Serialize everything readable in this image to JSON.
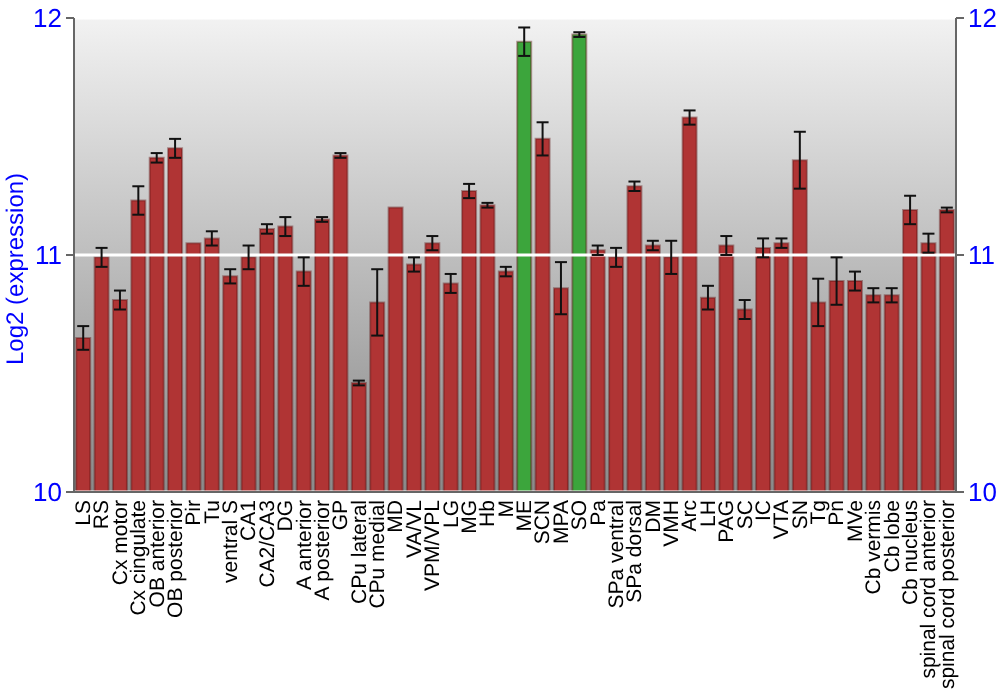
{
  "chart_data": {
    "type": "bar",
    "ylabel": "Log2 (expression)",
    "categories": [
      "LS",
      "RS",
      "Cx motor",
      "Cx cingulate",
      "OB anterior",
      "OB posterior",
      "Pir",
      "Tu",
      "ventral S",
      "CA1",
      "CA2/CA3",
      "DG",
      "A anterior",
      "A posterior",
      "GP",
      "CPu lateral",
      "CPu medial",
      "MD",
      "VA/VL",
      "VPM/VPL",
      "LG",
      "MG",
      "Hb",
      "M",
      "ME",
      "SCN",
      "MPA",
      "SO",
      "Pa",
      "SPa ventral",
      "SPa dorsal",
      "DM",
      "VMH",
      "Arc",
      "LH",
      "PAG",
      "SC",
      "IC",
      "VTA",
      "SN",
      "Tg",
      "Pn",
      "MVe",
      "Cb vermis",
      "Cb lobe",
      "Cb nucleus",
      "spinal cord anterior",
      "spinal cord posterior"
    ],
    "values": [
      10.65,
      10.99,
      10.81,
      11.23,
      11.41,
      11.45,
      11.05,
      11.07,
      10.91,
      10.99,
      11.11,
      11.12,
      10.93,
      11.15,
      11.42,
      10.46,
      10.8,
      11.2,
      10.96,
      11.05,
      10.88,
      11.27,
      11.21,
      10.93,
      11.9,
      11.49,
      10.86,
      11.93,
      11.02,
      10.99,
      11.29,
      11.04,
      10.99,
      11.58,
      10.82,
      11.04,
      10.77,
      11.03,
      11.05,
      11.4,
      10.8,
      10.89,
      10.89,
      10.83,
      10.83,
      11.19,
      11.05,
      11.19
    ],
    "errors": [
      0.05,
      0.04,
      0.04,
      0.06,
      0.02,
      0.04,
      0,
      0.03,
      0.03,
      0.05,
      0.02,
      0.04,
      0.06,
      0.01,
      0.01,
      0.01,
      0.14,
      0,
      0.03,
      0.03,
      0.04,
      0.03,
      0.01,
      0.02,
      0.06,
      0.07,
      0.11,
      0.01,
      0.02,
      0.04,
      0.02,
      0.02,
      0.07,
      0.03,
      0.05,
      0.04,
      0.04,
      0.04,
      0.02,
      0.12,
      0.1,
      0.1,
      0.04,
      0.03,
      0.03,
      0.06,
      0.04,
      0.01
    ],
    "colors": [
      "#b03434",
      "#b03434",
      "#b03434",
      "#b03434",
      "#b03434",
      "#b03434",
      "#b03434",
      "#b03434",
      "#b03434",
      "#b03434",
      "#b03434",
      "#b03434",
      "#b03434",
      "#b03434",
      "#b03434",
      "#b03434",
      "#b03434",
      "#b03434",
      "#b03434",
      "#b03434",
      "#b03434",
      "#b03434",
      "#b03434",
      "#b03434",
      "#3ca53c",
      "#b03434",
      "#b03434",
      "#3ca53c",
      "#b03434",
      "#b03434",
      "#b03434",
      "#b03434",
      "#b03434",
      "#b03434",
      "#b03434",
      "#b03434",
      "#b03434",
      "#b03434",
      "#b03434",
      "#b03434",
      "#b03434",
      "#b03434",
      "#b03434",
      "#b03434",
      "#b03434",
      "#b03434",
      "#b03434",
      "#b03434"
    ],
    "ylim": [
      10,
      12
    ],
    "yticks": [
      10,
      11,
      12
    ],
    "y2lim": [
      10,
      12
    ],
    "y2ticks": [
      10,
      11,
      12
    ],
    "grid": "y"
  }
}
